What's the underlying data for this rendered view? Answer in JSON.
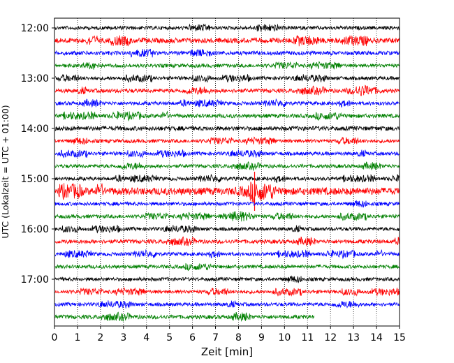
{
  "chart_data": {
    "type": "line",
    "title": "",
    "xlabel": "Zeit  [min]",
    "ylabel": "UTC (Lokalzeit = UTC + 01:00)",
    "xlim": [
      0,
      15
    ],
    "x_ticks": [
      "0",
      "1",
      "2",
      "3",
      "4",
      "5",
      "6",
      "7",
      "8",
      "9",
      "10",
      "11",
      "12",
      "13",
      "14",
      "15"
    ],
    "y_ticks": [
      "12:00",
      "13:00",
      "14:00",
      "15:00",
      "16:00",
      "17:00"
    ],
    "grid": "vertical-dotted",
    "row_minutes": 15,
    "row_colors": [
      "#000000",
      "#ff0000",
      "#0000ff",
      "#008000"
    ],
    "trace_end_minute_last_row": 11.3,
    "rows": [
      {
        "time": "12:00",
        "amplitude": 1.0
      },
      {
        "time": "12:15",
        "amplitude": 1.4
      },
      {
        "time": "12:30",
        "amplitude": 1.1
      },
      {
        "time": "12:45",
        "amplitude": 1.0
      },
      {
        "time": "13:00",
        "amplitude": 1.0
      },
      {
        "time": "13:15",
        "amplitude": 1.1,
        "event_minute": 13.4
      },
      {
        "time": "13:30",
        "amplitude": 1.0
      },
      {
        "time": "13:45",
        "amplitude": 1.1
      },
      {
        "time": "14:00",
        "amplitude": 1.2
      },
      {
        "time": "14:15",
        "amplitude": 1.0
      },
      {
        "time": "14:30",
        "amplitude": 1.0
      },
      {
        "time": "14:45",
        "amplitude": 1.0
      },
      {
        "time": "15:00",
        "amplitude": 1.0
      },
      {
        "time": "15:15",
        "amplitude": 2.0,
        "event_minute": 8.7
      },
      {
        "time": "15:30",
        "amplitude": 1.0
      },
      {
        "time": "15:45",
        "amplitude": 1.0,
        "event_minute": 8.0
      },
      {
        "time": "16:00",
        "amplitude": 1.0
      },
      {
        "time": "16:15",
        "amplitude": 1.1
      },
      {
        "time": "16:30",
        "amplitude": 1.0
      },
      {
        "time": "16:45",
        "amplitude": 1.0
      },
      {
        "time": "17:00",
        "amplitude": 1.0
      },
      {
        "time": "17:15",
        "amplitude": 1.0
      },
      {
        "time": "17:30",
        "amplitude": 1.0
      },
      {
        "time": "17:45",
        "amplitude": 1.1
      }
    ]
  }
}
